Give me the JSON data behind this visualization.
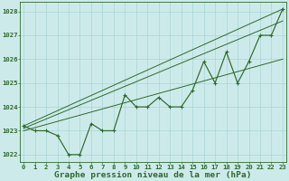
{
  "title": "Graphe pression niveau de la mer (hPa)",
  "x_hours": [
    0,
    1,
    2,
    3,
    4,
    5,
    6,
    7,
    8,
    9,
    10,
    11,
    12,
    13,
    14,
    15,
    16,
    17,
    18,
    19,
    20,
    21,
    22,
    23
  ],
  "pressure": [
    1023.2,
    1023.0,
    1023.0,
    1022.8,
    1022.0,
    1022.0,
    1023.3,
    1023.0,
    1023.0,
    1024.5,
    1024.0,
    1024.0,
    1024.4,
    1024.0,
    1024.0,
    1024.7,
    1025.9,
    1025.0,
    1026.3,
    1025.0,
    1025.9,
    1027.0,
    1027.0,
    1028.1
  ],
  "trend_lines": [
    [
      1023.2,
      1028.1
    ],
    [
      1023.1,
      1027.6
    ],
    [
      1023.0,
      1026.0
    ]
  ],
  "line_color": "#2d6a2d",
  "bg_color": "#cdeaea",
  "grid_color": "#a8d5d5",
  "ylim": [
    1021.7,
    1028.4
  ],
  "xlim": [
    -0.3,
    23.3
  ],
  "yticks": [
    1022,
    1023,
    1024,
    1025,
    1026,
    1027,
    1028
  ],
  "xticks": [
    0,
    1,
    2,
    3,
    4,
    5,
    6,
    7,
    8,
    9,
    10,
    11,
    12,
    13,
    14,
    15,
    16,
    17,
    18,
    19,
    20,
    21,
    22,
    23
  ],
  "tick_fontsize": 5.2,
  "title_fontsize": 6.8
}
